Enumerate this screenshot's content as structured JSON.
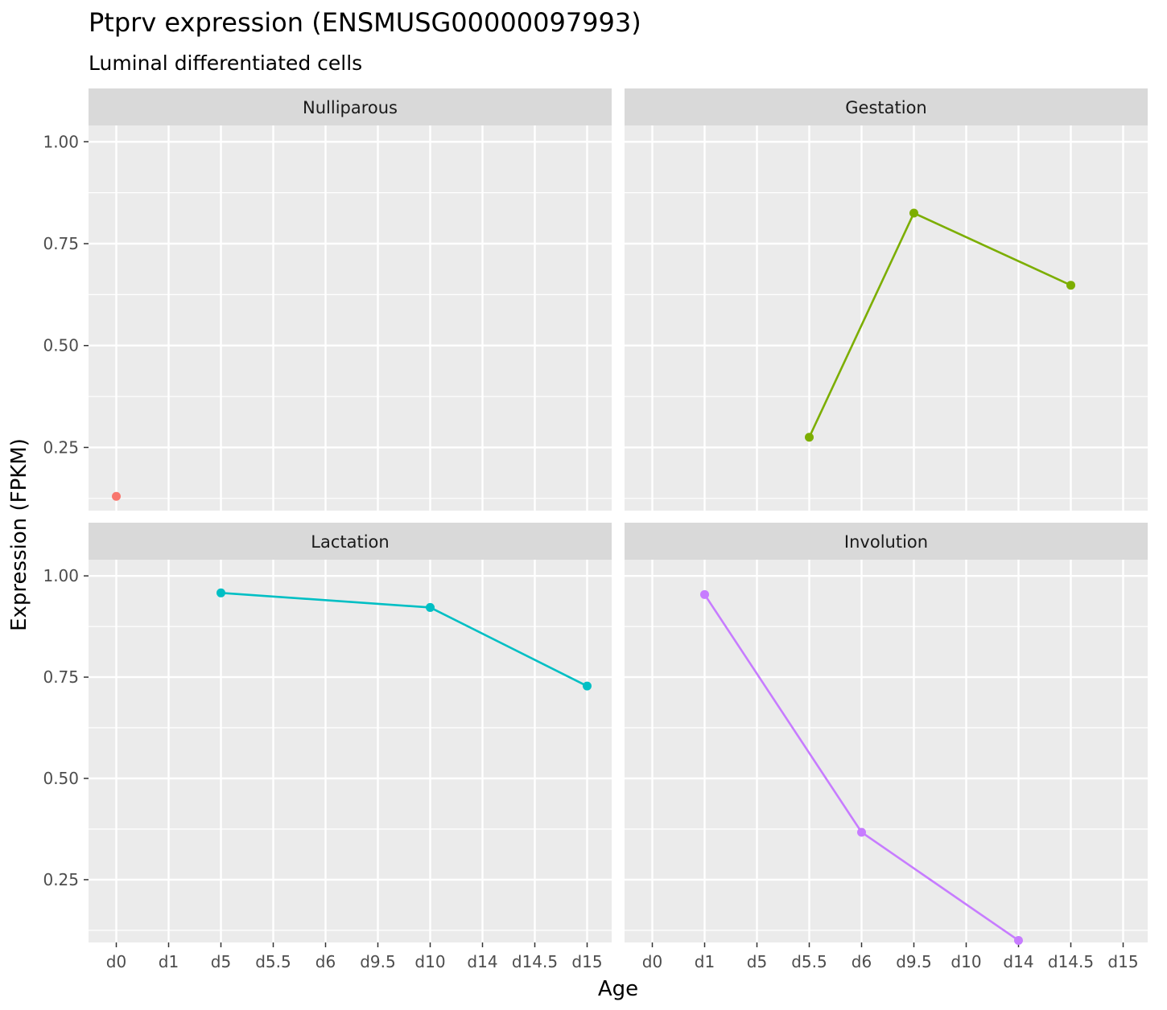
{
  "chart_data": {
    "type": "line",
    "title": "Ptprv expression (ENSMUSG00000097993)",
    "subtitle": "Luminal differentiated cells",
    "xlabel": "Age",
    "ylabel": "Expression (FPKM)",
    "categories": [
      "d0",
      "d1",
      "d5",
      "d5.5",
      "d6",
      "d9.5",
      "d10",
      "d14",
      "d14.5",
      "d15"
    ],
    "ylim": [
      0.095,
      1.04
    ],
    "y_ticks": [
      0.25,
      0.5,
      0.75,
      1.0
    ],
    "y_tick_labels": [
      "0.25",
      "0.50",
      "0.75",
      "1.00"
    ],
    "grid": true,
    "legend": "none",
    "facets": [
      {
        "name": "Nulliparous",
        "color": "#F8766D",
        "points": [
          {
            "x": "d0",
            "y": 0.13
          }
        ]
      },
      {
        "name": "Gestation",
        "color": "#7CAE00",
        "points": [
          {
            "x": "d5.5",
            "y": 0.275
          },
          {
            "x": "d9.5",
            "y": 0.825
          },
          {
            "x": "d14.5",
            "y": 0.648
          }
        ]
      },
      {
        "name": "Lactation",
        "color": "#00BFC4",
        "points": [
          {
            "x": "d5",
            "y": 0.958
          },
          {
            "x": "d10",
            "y": 0.922
          },
          {
            "x": "d15",
            "y": 0.728
          }
        ]
      },
      {
        "name": "Involution",
        "color": "#C77CFF",
        "points": [
          {
            "x": "d1",
            "y": 0.954
          },
          {
            "x": "d6",
            "y": 0.367
          },
          {
            "x": "d14",
            "y": 0.1
          }
        ]
      }
    ]
  }
}
